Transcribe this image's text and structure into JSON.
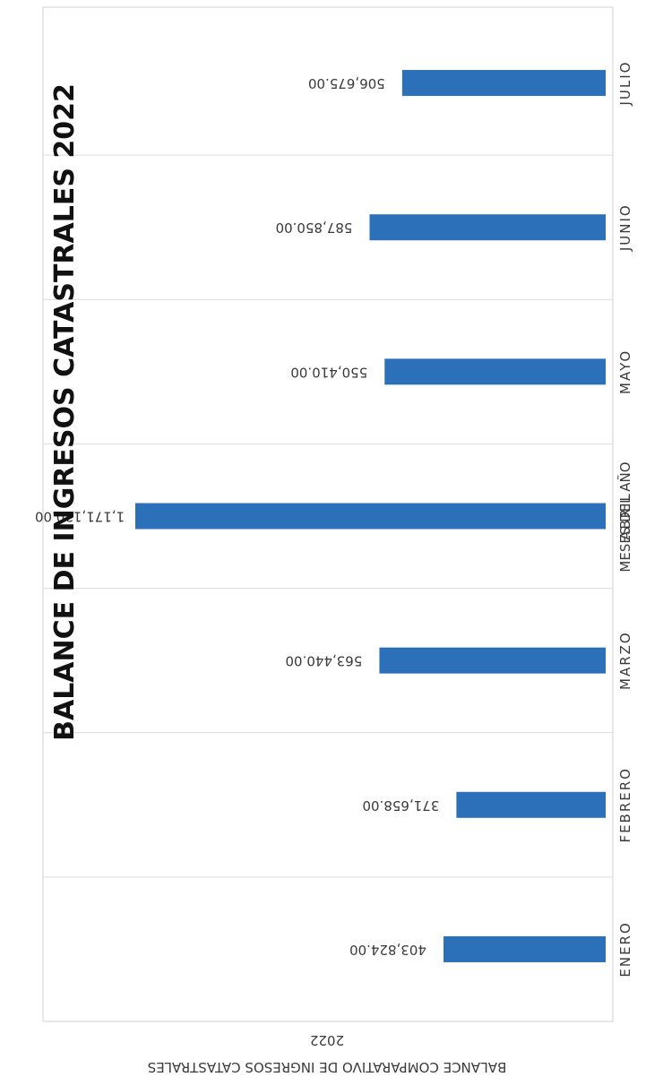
{
  "title": "BALANCE DE INGRESOS CATASTRALES 2022",
  "chart_title": "BALANCE COMPARATIVO DE INGRESOS CATASTRALES",
  "chart_subtitle": "2022",
  "chart_data": {
    "type": "bar",
    "orientation": "rotated",
    "title": "BALANCE DE INGRESOS CATASTRALES 2022",
    "xlabel": "MESES DEL AÑO",
    "ylabel": "",
    "categories": [
      "ENERO",
      "FEBRERO",
      "MARZO",
      "ABRIL",
      "MAYO",
      "JUNIO",
      "JULIO"
    ],
    "values": [
      403824,
      371658,
      563440,
      1171120,
      550410,
      587850,
      506675
    ],
    "value_labels": [
      "403,824.00",
      "371,658.00",
      "563,440.00",
      "1,171,120.00",
      "550,410.00",
      "587,850.00",
      "506,675.00"
    ],
    "ylim": [
      0,
      1300000
    ],
    "grid": true,
    "legend": "none",
    "bar_color": "#2b70b8"
  }
}
